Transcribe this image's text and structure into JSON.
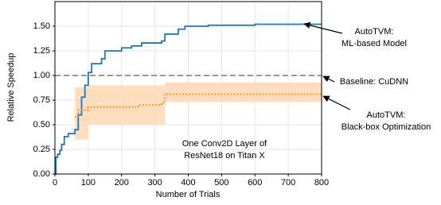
{
  "chart_data": {
    "type": "line",
    "xlabel": "Number of Trials",
    "ylabel": "Relative Speedup",
    "xlim": [
      0,
      800
    ],
    "ylim": [
      0,
      1.75
    ],
    "xticks": [
      0,
      100,
      200,
      300,
      400,
      500,
      600,
      700,
      800
    ],
    "yticks": [
      {
        "value": 0,
        "label": "0.00"
      },
      {
        "value": 0.25,
        "label": "0.25"
      },
      {
        "value": 0.5,
        "label": "0.50"
      },
      {
        "value": 0.75,
        "label": "0.75"
      },
      {
        "value": 1,
        "label": "1.00"
      },
      {
        "value": 1.25,
        "label": "1.25"
      },
      {
        "value": 1.5,
        "label": "1.50"
      }
    ],
    "grid": true,
    "series": [
      {
        "color": "#1f77b4",
        "style": "solid",
        "x": [
          0,
          3,
          3,
          8,
          8,
          15,
          15,
          20,
          20,
          28,
          28,
          40,
          40,
          60,
          60,
          70,
          70,
          80,
          80,
          90,
          90,
          100,
          100,
          110,
          110,
          140,
          140,
          150,
          150,
          200,
          200,
          230,
          230,
          260,
          260,
          320,
          320,
          330,
          330,
          370,
          370,
          390,
          390,
          460,
          460,
          600,
          600,
          800
        ],
        "values": [
          0,
          0,
          0.17,
          0.17,
          0.2,
          0.2,
          0.24,
          0.24,
          0.3,
          0.3,
          0.38,
          0.38,
          0.41,
          0.41,
          0.45,
          0.45,
          0.6,
          0.6,
          0.78,
          0.78,
          0.9,
          0.9,
          1.03,
          1.03,
          1.12,
          1.12,
          1.17,
          1.17,
          1.25,
          1.25,
          1.28,
          1.28,
          1.3,
          1.3,
          1.33,
          1.33,
          1.35,
          1.35,
          1.42,
          1.42,
          1.47,
          1.47,
          1.5,
          1.5,
          1.51,
          1.51,
          1.52,
          1.52
        ]
      },
      {
        "color": "#ff7f0e",
        "style": "dotted",
        "x": [
          60,
          70,
          70,
          100,
          100,
          250,
          250,
          320,
          320,
          330,
          330,
          800
        ],
        "values": [
          0.58,
          0.58,
          0.65,
          0.65,
          0.68,
          0.68,
          0.7,
          0.7,
          0.72,
          0.72,
          0.81,
          0.81
        ]
      }
    ],
    "bands": [
      {
        "color": "#fdd9b5",
        "x": [
          60,
          100,
          100,
          330,
          330,
          800
        ],
        "lower": [
          0.35,
          0.35,
          0.5,
          0.5,
          0.73,
          0.73
        ],
        "upper": [
          0.88,
          0.88,
          0.9,
          0.9,
          0.93,
          0.93
        ]
      }
    ],
    "reference_line": {
      "value": 1,
      "color": "#777777"
    },
    "annotations": [
      {
        "lines": [
          "AutoTVM:",
          "ML-based Model"
        ]
      },
      {
        "lines": [
          "Baseline: CuDNN"
        ]
      },
      {
        "lines": [
          "AutoTVM:",
          "Black-box Optimization"
        ]
      },
      {
        "lines": [
          "One Conv2D Layer of",
          "ResNet18 on Titan X"
        ]
      }
    ]
  }
}
